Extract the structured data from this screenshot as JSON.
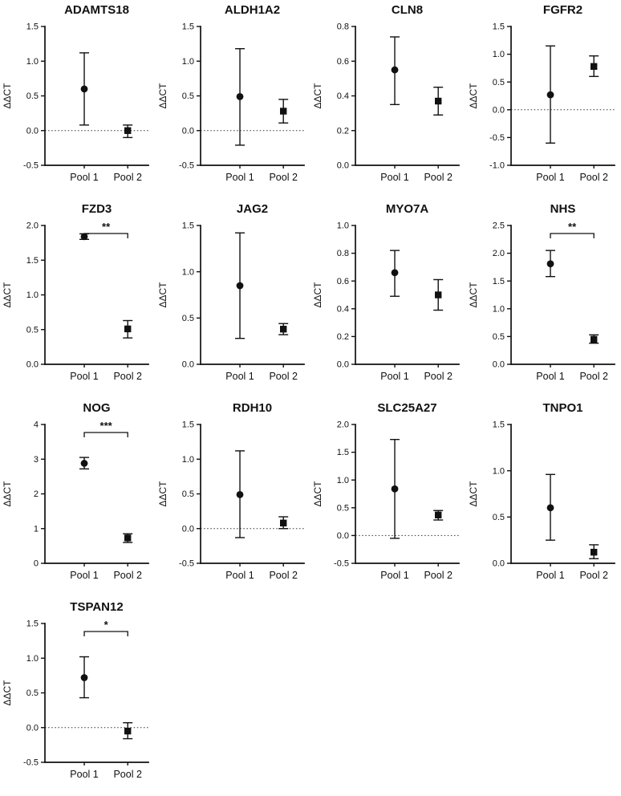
{
  "figure": {
    "ylabel": "ΔΔCT",
    "categories": [
      "Pool 1",
      "Pool 2"
    ],
    "marker_color": "#111111"
  },
  "chart_data": [
    {
      "type": "scatter",
      "title": "ADAMTS18",
      "ylabel": "ΔΔCT",
      "categories": [
        "Pool 1",
        "Pool 2"
      ],
      "ylim": [
        -0.5,
        1.5
      ],
      "yticks": [
        -0.5,
        0,
        0.5,
        1,
        1.5
      ],
      "ytick_labels": [
        "-0.5",
        "0.0",
        "0.5",
        "1.0",
        "1.5"
      ],
      "zero_line": true,
      "significance": null,
      "series": [
        {
          "name": "Pool 1",
          "marker": "circle",
          "mean": 0.6,
          "err_lo": 0.08,
          "err_hi": 1.12
        },
        {
          "name": "Pool 2",
          "marker": "square",
          "mean": 0.0,
          "err_lo": -0.1,
          "err_hi": 0.08
        }
      ]
    },
    {
      "type": "scatter",
      "title": "ALDH1A2",
      "ylabel": "ΔΔCT",
      "categories": [
        "Pool 1",
        "Pool 2"
      ],
      "ylim": [
        -0.5,
        1.5
      ],
      "yticks": [
        -0.5,
        0,
        0.5,
        1,
        1.5
      ],
      "ytick_labels": [
        "-0.5",
        "0.0",
        "0.5",
        "1.0",
        "1.5"
      ],
      "zero_line": true,
      "significance": null,
      "series": [
        {
          "name": "Pool 1",
          "marker": "circle",
          "mean": 0.49,
          "err_lo": -0.21,
          "err_hi": 1.18
        },
        {
          "name": "Pool 2",
          "marker": "square",
          "mean": 0.28,
          "err_lo": 0.11,
          "err_hi": 0.45
        }
      ]
    },
    {
      "type": "scatter",
      "title": "CLN8",
      "ylabel": "ΔΔCT",
      "categories": [
        "Pool 1",
        "Pool 2"
      ],
      "ylim": [
        0,
        0.8
      ],
      "yticks": [
        0,
        0.2,
        0.4,
        0.6,
        0.8
      ],
      "ytick_labels": [
        "0.0",
        "0.2",
        "0.4",
        "0.6",
        "0.8"
      ],
      "zero_line": false,
      "significance": null,
      "series": [
        {
          "name": "Pool 1",
          "marker": "circle",
          "mean": 0.55,
          "err_lo": 0.35,
          "err_hi": 0.74
        },
        {
          "name": "Pool 2",
          "marker": "square",
          "mean": 0.37,
          "err_lo": 0.29,
          "err_hi": 0.45
        }
      ]
    },
    {
      "type": "scatter",
      "title": "FGFR2",
      "ylabel": "ΔΔCT",
      "categories": [
        "Pool 1",
        "Pool 2"
      ],
      "ylim": [
        -1.0,
        1.5
      ],
      "yticks": [
        -1.0,
        -0.5,
        0,
        0.5,
        1,
        1.5
      ],
      "ytick_labels": [
        "-1.0",
        "-0.5",
        "0.0",
        "0.5",
        "1.0",
        "1.5"
      ],
      "zero_line": true,
      "significance": null,
      "series": [
        {
          "name": "Pool 1",
          "marker": "circle",
          "mean": 0.27,
          "err_lo": -0.6,
          "err_hi": 1.15
        },
        {
          "name": "Pool 2",
          "marker": "square",
          "mean": 0.78,
          "err_lo": 0.6,
          "err_hi": 0.97
        }
      ]
    },
    {
      "type": "scatter",
      "title": "FZD3",
      "ylabel": "ΔΔCT",
      "categories": [
        "Pool 1",
        "Pool 2"
      ],
      "ylim": [
        0,
        2.0
      ],
      "yticks": [
        0,
        0.5,
        1,
        1.5,
        2
      ],
      "ytick_labels": [
        "0.0",
        "0.5",
        "1.0",
        "1.5",
        "2.0"
      ],
      "zero_line": false,
      "significance": "**",
      "series": [
        {
          "name": "Pool 1",
          "marker": "circle",
          "mean": 1.84,
          "err_lo": 1.8,
          "err_hi": 1.88
        },
        {
          "name": "Pool 2",
          "marker": "square",
          "mean": 0.51,
          "err_lo": 0.38,
          "err_hi": 0.63
        }
      ]
    },
    {
      "type": "scatter",
      "title": "JAG2",
      "ylabel": "ΔΔCT",
      "categories": [
        "Pool 1",
        "Pool 2"
      ],
      "ylim": [
        0,
        1.5
      ],
      "yticks": [
        0,
        0.5,
        1,
        1.5
      ],
      "ytick_labels": [
        "0.0",
        "0.5",
        "1.0",
        "1.5"
      ],
      "zero_line": false,
      "significance": null,
      "series": [
        {
          "name": "Pool 1",
          "marker": "circle",
          "mean": 0.85,
          "err_lo": 0.28,
          "err_hi": 1.42
        },
        {
          "name": "Pool 2",
          "marker": "square",
          "mean": 0.38,
          "err_lo": 0.32,
          "err_hi": 0.44
        }
      ]
    },
    {
      "type": "scatter",
      "title": "MYO7A",
      "ylabel": "ΔΔCT",
      "categories": [
        "Pool 1",
        "Pool 2"
      ],
      "ylim": [
        0,
        1.0
      ],
      "yticks": [
        0,
        0.2,
        0.4,
        0.6,
        0.8,
        1.0
      ],
      "ytick_labels": [
        "0.0",
        "0.2",
        "0.4",
        "0.6",
        "0.8",
        "1.0"
      ],
      "zero_line": false,
      "significance": null,
      "series": [
        {
          "name": "Pool 1",
          "marker": "circle",
          "mean": 0.66,
          "err_lo": 0.49,
          "err_hi": 0.82
        },
        {
          "name": "Pool 2",
          "marker": "square",
          "mean": 0.5,
          "err_lo": 0.39,
          "err_hi": 0.61
        }
      ]
    },
    {
      "type": "scatter",
      "title": "NHS",
      "ylabel": "ΔΔCT",
      "categories": [
        "Pool 1",
        "Pool 2"
      ],
      "ylim": [
        0,
        2.5
      ],
      "yticks": [
        0,
        0.5,
        1,
        1.5,
        2,
        2.5
      ],
      "ytick_labels": [
        "0.0",
        "0.5",
        "1.0",
        "1.5",
        "2.0",
        "2.5"
      ],
      "zero_line": false,
      "significance": "**",
      "series": [
        {
          "name": "Pool 1",
          "marker": "circle",
          "mean": 1.81,
          "err_lo": 1.58,
          "err_hi": 2.05
        },
        {
          "name": "Pool 2",
          "marker": "square",
          "mean": 0.45,
          "err_lo": 0.38,
          "err_hi": 0.53
        }
      ]
    },
    {
      "type": "scatter",
      "title": "NOG",
      "ylabel": "ΔΔCT",
      "categories": [
        "Pool 1",
        "Pool 2"
      ],
      "ylim": [
        0,
        4
      ],
      "yticks": [
        0,
        1,
        2,
        3,
        4
      ],
      "ytick_labels": [
        "0",
        "1",
        "2",
        "3",
        "4"
      ],
      "zero_line": false,
      "significance": "***",
      "series": [
        {
          "name": "Pool 1",
          "marker": "circle",
          "mean": 2.88,
          "err_lo": 2.72,
          "err_hi": 3.05
        },
        {
          "name": "Pool 2",
          "marker": "square",
          "mean": 0.73,
          "err_lo": 0.6,
          "err_hi": 0.85
        }
      ]
    },
    {
      "type": "scatter",
      "title": "RDH10",
      "ylabel": "ΔΔCT",
      "categories": [
        "Pool 1",
        "Pool 2"
      ],
      "ylim": [
        -0.5,
        1.5
      ],
      "yticks": [
        -0.5,
        0,
        0.5,
        1,
        1.5
      ],
      "ytick_labels": [
        "-0.5",
        "0.0",
        "0.5",
        "1.0",
        "1.5"
      ],
      "zero_line": true,
      "significance": null,
      "series": [
        {
          "name": "Pool 1",
          "marker": "circle",
          "mean": 0.49,
          "err_lo": -0.13,
          "err_hi": 1.12
        },
        {
          "name": "Pool 2",
          "marker": "square",
          "mean": 0.08,
          "err_lo": 0.0,
          "err_hi": 0.17
        }
      ]
    },
    {
      "type": "scatter",
      "title": "SLC25A27",
      "ylabel": "ΔΔCT",
      "categories": [
        "Pool 1",
        "Pool 2"
      ],
      "ylim": [
        -0.5,
        2.0
      ],
      "yticks": [
        -0.5,
        0,
        0.5,
        1,
        1.5,
        2
      ],
      "ytick_labels": [
        "-0.5",
        "0.0",
        "0.5",
        "1.0",
        "1.5",
        "2.0"
      ],
      "zero_line": true,
      "significance": null,
      "series": [
        {
          "name": "Pool 1",
          "marker": "circle",
          "mean": 0.84,
          "err_lo": -0.05,
          "err_hi": 1.73
        },
        {
          "name": "Pool 2",
          "marker": "square",
          "mean": 0.37,
          "err_lo": 0.28,
          "err_hi": 0.45
        }
      ]
    },
    {
      "type": "scatter",
      "title": "TNPO1",
      "ylabel": "ΔΔCT",
      "categories": [
        "Pool 1",
        "Pool 2"
      ],
      "ylim": [
        0,
        1.5
      ],
      "yticks": [
        0,
        0.5,
        1,
        1.5
      ],
      "ytick_labels": [
        "0.0",
        "0.5",
        "1.0",
        "1.5"
      ],
      "zero_line": false,
      "significance": null,
      "series": [
        {
          "name": "Pool 1",
          "marker": "circle",
          "mean": 0.6,
          "err_lo": 0.25,
          "err_hi": 0.96
        },
        {
          "name": "Pool 2",
          "marker": "square",
          "mean": 0.12,
          "err_lo": 0.05,
          "err_hi": 0.2
        }
      ]
    },
    {
      "type": "scatter",
      "title": "TSPAN12",
      "ylabel": "ΔΔCT",
      "categories": [
        "Pool 1",
        "Pool 2"
      ],
      "ylim": [
        -0.5,
        1.5
      ],
      "yticks": [
        -0.5,
        0,
        0.5,
        1,
        1.5
      ],
      "ytick_labels": [
        "-0.5",
        "0.0",
        "0.5",
        "1.0",
        "1.5"
      ],
      "zero_line": true,
      "significance": "*",
      "series": [
        {
          "name": "Pool 1",
          "marker": "circle",
          "mean": 0.72,
          "err_lo": 0.43,
          "err_hi": 1.02
        },
        {
          "name": "Pool 2",
          "marker": "square",
          "mean": -0.05,
          "err_lo": -0.16,
          "err_hi": 0.07
        }
      ]
    }
  ]
}
